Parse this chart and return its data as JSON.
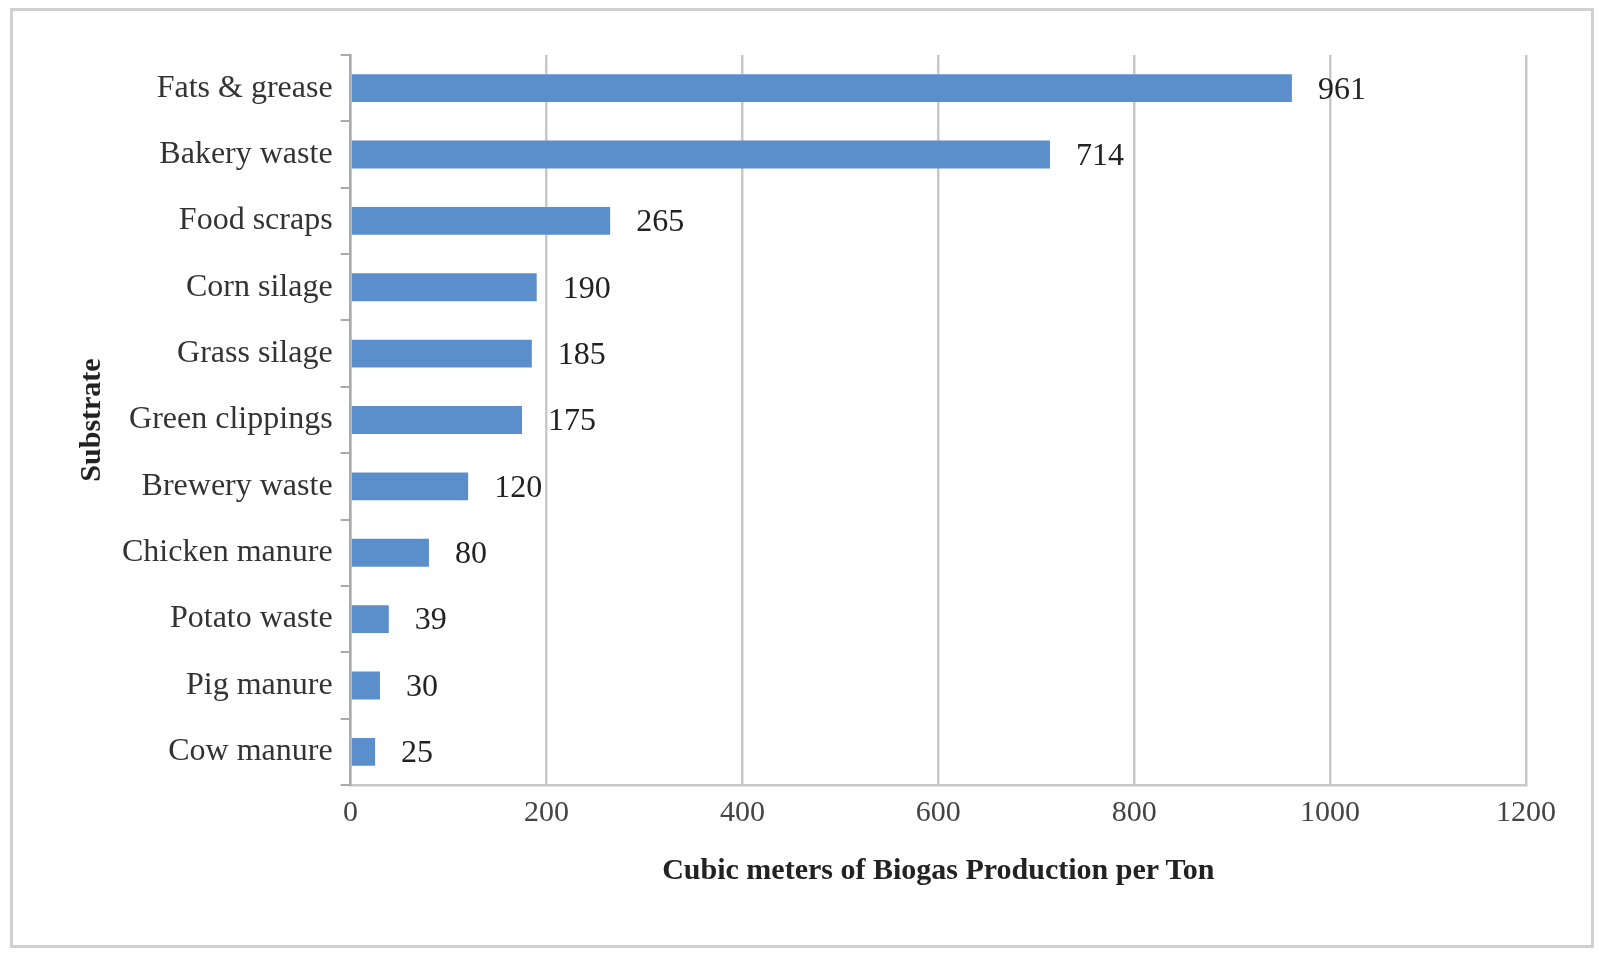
{
  "chart_data": {
    "type": "bar",
    "orientation": "horizontal",
    "xlabel": "Cubic meters of Biogas Production per Ton",
    "ylabel": "Substrate",
    "categories": [
      "Fats & grease",
      "Bakery waste",
      "Food scraps",
      "Corn silage",
      "Grass silage",
      "Green clippings",
      "Brewery waste",
      "Chicken manure",
      "Potato waste",
      "Pig manure",
      "Cow manure"
    ],
    "values": [
      961,
      714,
      265,
      190,
      185,
      175,
      120,
      80,
      39,
      30,
      25
    ],
    "color": "#5b8fcc",
    "xlim": [
      0,
      1200
    ],
    "xticks": [
      0,
      200,
      400,
      600,
      800,
      1000,
      1200
    ],
    "grid": "x",
    "data_labels": true
  }
}
